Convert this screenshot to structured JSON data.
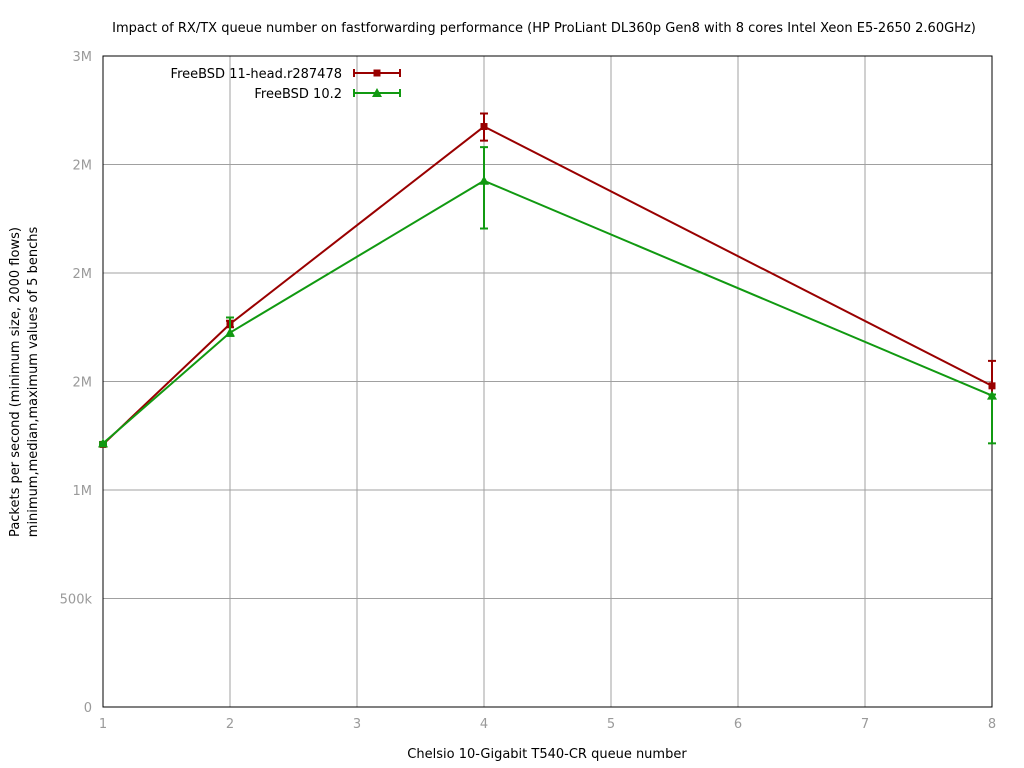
{
  "chart_data": {
    "type": "line",
    "title": "Impact of RX/TX queue number on fastforwarding performance (HP ProLiant DL360p Gen8 with 8 cores Intel Xeon E5-2650 2.60GHz)",
    "xlabel": "Chelsio 10-Gigabit T540-CR queue number",
    "ylabel_lines": [
      "Packets per second (minimum size, 2000 flows)",
      "minimum,median,maximum values of 5 benchs"
    ],
    "xlim": [
      1,
      8
    ],
    "ylim": [
      0,
      3000000
    ],
    "x_ticks": [
      {
        "value": 1,
        "label": "1"
      },
      {
        "value": 2,
        "label": "2"
      },
      {
        "value": 3,
        "label": "3"
      },
      {
        "value": 4,
        "label": "4"
      },
      {
        "value": 5,
        "label": "5"
      },
      {
        "value": 6,
        "label": "6"
      },
      {
        "value": 7,
        "label": "7"
      },
      {
        "value": 8,
        "label": "8"
      }
    ],
    "y_ticks": [
      {
        "value": 0,
        "label": "0"
      },
      {
        "value": 500000,
        "label": "500k"
      },
      {
        "value": 1000000,
        "label": "1M"
      },
      {
        "value": 1500000,
        "label": "2M"
      },
      {
        "value": 2000000,
        "label": "2M"
      },
      {
        "value": 2500000,
        "label": "2M"
      },
      {
        "value": 3000000,
        "label": "3M"
      }
    ],
    "grid": true,
    "legend_position": "top-left",
    "series": [
      {
        "name": "FreeBSD 11-head.r287478",
        "color": "#990000",
        "marker": "square",
        "x": [
          1,
          2,
          4,
          8
        ],
        "y": [
          1210000,
          1765000,
          2675000,
          1480000
        ],
        "y_min": [
          1205000,
          1750000,
          2610000,
          1440000
        ],
        "y_max": [
          1220000,
          1780000,
          2735000,
          1595000
        ]
      },
      {
        "name": "FreeBSD 10.2",
        "color": "#119911",
        "marker": "triangle",
        "x": [
          1,
          2,
          4,
          8
        ],
        "y": [
          1215000,
          1725000,
          2425000,
          1435000
        ],
        "y_min": [
          1210000,
          1710000,
          2205000,
          1215000
        ],
        "y_max": [
          1220000,
          1795000,
          2580000,
          1440000
        ]
      }
    ]
  }
}
